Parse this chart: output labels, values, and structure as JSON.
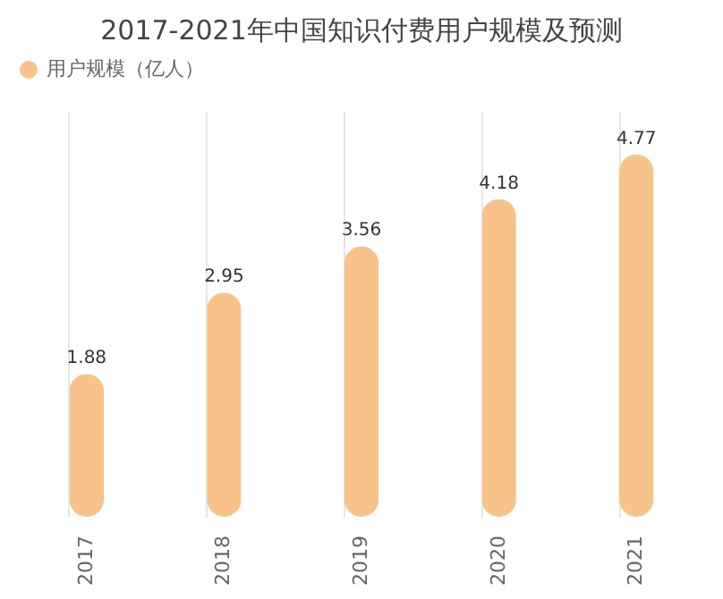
{
  "chart_data": {
    "type": "bar",
    "title": "2017-2021年中国知识付费用户规模及预测",
    "categories": [
      "2017",
      "2018",
      "2019",
      "2020",
      "2021"
    ],
    "series": [
      {
        "name": "用户规模（亿人）",
        "color": "#f7c38a",
        "values": [
          1.88,
          2.95,
          3.56,
          4.18,
          4.77
        ]
      }
    ],
    "data_labels": true,
    "grid": "x",
    "legend": "top",
    "tick_labels": "x"
  }
}
